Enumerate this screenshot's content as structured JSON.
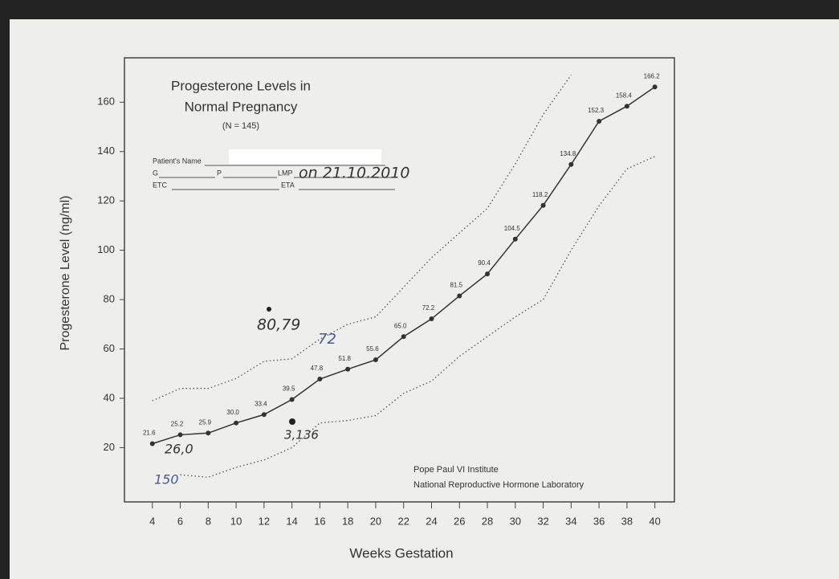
{
  "chart_data": {
    "type": "line",
    "title": [
      "Progesterone Levels in",
      "Normal Pregnancy"
    ],
    "subtitle": "(N = 145)",
    "xlabel": "Weeks Gestation",
    "ylabel": "Progesterone Level (ng/ml)",
    "x": [
      4,
      6,
      8,
      10,
      12,
      14,
      16,
      18,
      20,
      22,
      24,
      26,
      28,
      30,
      32,
      34,
      36,
      38,
      40
    ],
    "series": [
      {
        "color": "#333333",
        "dashed": false,
        "markers": true,
        "values": [
          21.6,
          25.2,
          25.9,
          30.0,
          33.4,
          39.5,
          47.8,
          51.8,
          55.6,
          65.0,
          72.2,
          81.5,
          90.4,
          104.5,
          118.2,
          134.8,
          152.3,
          158.4,
          166.2
        ],
        "value_labels": [
          "21.6",
          "25.2",
          "25.9",
          "30.0",
          "33.4",
          "39.5",
          "47.8",
          "51.8",
          "55.6",
          "65.0",
          "72.2",
          "81.5",
          "90.4",
          "104.5",
          "118.2",
          "134.8",
          "152.3",
          "158.4",
          "166.2"
        ]
      },
      {
        "color": "#555555",
        "dashed": true,
        "markers": false,
        "values": [
          39,
          44,
          44,
          48,
          55,
          56,
          64,
          70,
          73,
          85,
          97,
          107,
          117,
          135,
          155,
          171,
          null,
          null,
          null
        ]
      },
      {
        "color": "#555555",
        "dashed": true,
        "markers": false,
        "values": [
          null,
          9,
          8,
          12,
          15,
          20,
          30,
          31,
          33,
          42,
          47,
          57,
          65,
          73,
          80,
          100,
          118,
          133,
          138
        ]
      }
    ],
    "xlim": [
      2,
      41.4
    ],
    "ylim": [
      -2,
      178
    ],
    "xticks": [
      4,
      6,
      8,
      10,
      12,
      14,
      16,
      18,
      20,
      22,
      24,
      26,
      28,
      30,
      32,
      34,
      36,
      38,
      40
    ],
    "yticks": [
      20,
      40,
      60,
      80,
      100,
      120,
      140,
      160
    ],
    "form": {
      "name": "Patient's Name",
      "g": "G",
      "p": "P",
      "lmp": "LMP",
      "etc": "ETC",
      "eta": "ETA",
      "lmp_entry": "on 21.10.2010"
    },
    "handwritten": [
      "80,79",
      "72",
      "26,0",
      "3,136",
      "150"
    ],
    "footer": [
      "Pope Paul VI Institute",
      "National Reproductive Hormone Laboratory"
    ]
  }
}
